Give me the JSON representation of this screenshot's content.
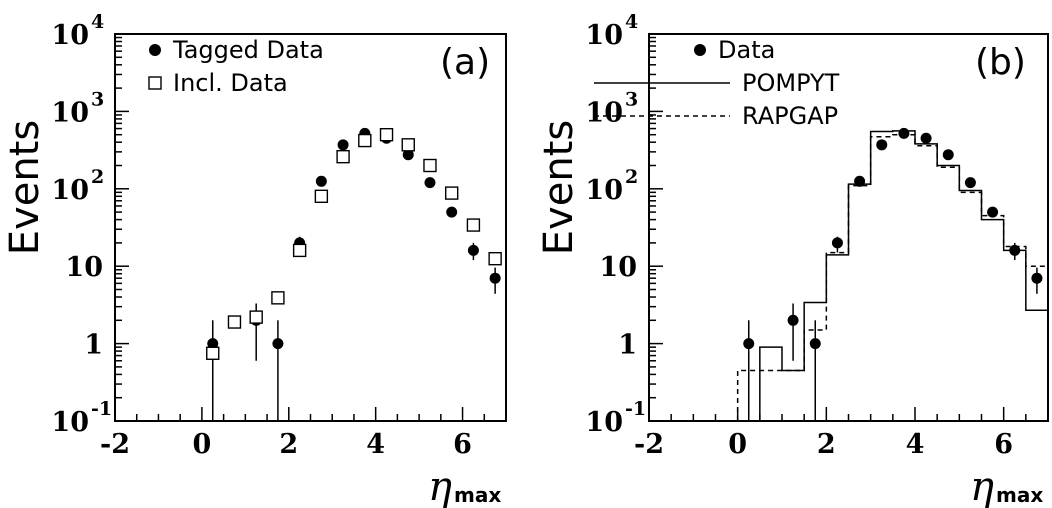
{
  "chart_data": [
    {
      "type": "scatter",
      "panel_label": "(a)",
      "ylabel": "Events",
      "xlabel": "η",
      "xlabel_sub": "max",
      "xlim": [
        -2,
        7
      ],
      "ylim": [
        0.1,
        10000
      ],
      "y_scale": "log",
      "x_ticks": [
        {
          "value": -2,
          "label": "-2"
        },
        {
          "value": 0,
          "label": "0"
        },
        {
          "value": 2,
          "label": "2"
        },
        {
          "value": 4,
          "label": "4"
        },
        {
          "value": 6,
          "label": "6"
        }
      ],
      "y_ticks": [
        {
          "value": 0.1,
          "base": "10",
          "exp": "-1"
        },
        {
          "value": 1,
          "base": "1",
          "exp": ""
        },
        {
          "value": 10,
          "base": "10",
          "exp": ""
        },
        {
          "value": 100,
          "base": "10",
          "exp": "2"
        },
        {
          "value": 1000,
          "base": "10",
          "exp": "3"
        },
        {
          "value": 10000,
          "base": "10",
          "exp": "4"
        }
      ],
      "legend_position": "top-left",
      "series": [
        {
          "name": "Tagged Data",
          "marker": "filled-circle",
          "points": [
            {
              "x": 0.25,
              "y": 1,
              "ylo": 0.1,
              "yhi": 2
            },
            {
              "x": 1.25,
              "y": 2,
              "ylo": 0.6,
              "yhi": 3.3
            },
            {
              "x": 1.75,
              "y": 1,
              "ylo": 0.1,
              "yhi": 2
            },
            {
              "x": 2.25,
              "y": 20,
              "ylo": 15,
              "yhi": 24
            },
            {
              "x": 2.75,
              "y": 125,
              "ylo": 115,
              "yhi": 137
            },
            {
              "x": 3.25,
              "y": 370,
              "ylo": 350,
              "yhi": 390
            },
            {
              "x": 3.75,
              "y": 520,
              "ylo": 495,
              "yhi": 545
            },
            {
              "x": 4.25,
              "y": 450,
              "ylo": 430,
              "yhi": 470
            },
            {
              "x": 4.75,
              "y": 275,
              "ylo": 258,
              "yhi": 292
            },
            {
              "x": 5.25,
              "y": 120,
              "ylo": 110,
              "yhi": 131
            },
            {
              "x": 5.75,
              "y": 50,
              "ylo": 43,
              "yhi": 57
            },
            {
              "x": 6.25,
              "y": 16,
              "ylo": 12,
              "yhi": 20
            },
            {
              "x": 6.75,
              "y": 7,
              "ylo": 4.4,
              "yhi": 9.6
            }
          ]
        },
        {
          "name": "Incl. Data",
          "marker": "open-square",
          "points": [
            {
              "x": 0.25,
              "y": 0.75
            },
            {
              "x": 0.75,
              "y": 1.9
            },
            {
              "x": 1.25,
              "y": 2.2
            },
            {
              "x": 1.75,
              "y": 3.9
            },
            {
              "x": 2.25,
              "y": 16
            },
            {
              "x": 2.75,
              "y": 80
            },
            {
              "x": 3.25,
              "y": 260
            },
            {
              "x": 3.75,
              "y": 420
            },
            {
              "x": 4.25,
              "y": 500
            },
            {
              "x": 4.75,
              "y": 370
            },
            {
              "x": 5.25,
              "y": 200
            },
            {
              "x": 5.75,
              "y": 88
            },
            {
              "x": 6.25,
              "y": 34
            },
            {
              "x": 6.75,
              "y": 12.5
            }
          ]
        }
      ]
    },
    {
      "type": "scatter",
      "panel_label": "(b)",
      "ylabel": "Events",
      "xlabel": "η",
      "xlabel_sub": "max",
      "xlim": [
        -2,
        7
      ],
      "ylim": [
        0.1,
        10000
      ],
      "y_scale": "log",
      "x_ticks": [
        {
          "value": -2,
          "label": "-2"
        },
        {
          "value": 0,
          "label": "0"
        },
        {
          "value": 2,
          "label": "2"
        },
        {
          "value": 4,
          "label": "4"
        },
        {
          "value": 6,
          "label": "6"
        }
      ],
      "y_ticks": [
        {
          "value": 0.1,
          "base": "10",
          "exp": "-1"
        },
        {
          "value": 1,
          "base": "1",
          "exp": ""
        },
        {
          "value": 10,
          "base": "10",
          "exp": ""
        },
        {
          "value": 100,
          "base": "10",
          "exp": "2"
        },
        {
          "value": 1000,
          "base": "10",
          "exp": "3"
        },
        {
          "value": 10000,
          "base": "10",
          "exp": "4"
        }
      ],
      "legend_position": "top-left",
      "series": [
        {
          "name": "Data",
          "marker": "filled-circle",
          "points": [
            {
              "x": 0.25,
              "y": 1,
              "ylo": 0.1,
              "yhi": 2
            },
            {
              "x": 1.25,
              "y": 2,
              "ylo": 0.6,
              "yhi": 3.3
            },
            {
              "x": 1.75,
              "y": 1,
              "ylo": 0.1,
              "yhi": 2
            },
            {
              "x": 2.25,
              "y": 20,
              "ylo": 15,
              "yhi": 24
            },
            {
              "x": 2.75,
              "y": 125,
              "ylo": 115,
              "yhi": 137
            },
            {
              "x": 3.25,
              "y": 370,
              "ylo": 350,
              "yhi": 390
            },
            {
              "x": 3.75,
              "y": 520,
              "ylo": 495,
              "yhi": 545
            },
            {
              "x": 4.25,
              "y": 450,
              "ylo": 430,
              "yhi": 470
            },
            {
              "x": 4.75,
              "y": 275,
              "ylo": 258,
              "yhi": 292
            },
            {
              "x": 5.25,
              "y": 120,
              "ylo": 110,
              "yhi": 131
            },
            {
              "x": 5.75,
              "y": 50,
              "ylo": 43,
              "yhi": 57
            },
            {
              "x": 6.25,
              "y": 16,
              "ylo": 12,
              "yhi": 20
            },
            {
              "x": 6.75,
              "y": 7,
              "ylo": 4.4,
              "yhi": 9.6
            }
          ]
        },
        {
          "name": "POMPYT",
          "line_style": "solid",
          "bin_edges": [
            0,
            0.5,
            1,
            1.5,
            2,
            2.5,
            3,
            3.5,
            4,
            4.5,
            5,
            5.5,
            6,
            6.5,
            7
          ],
          "values": [
            0.1,
            0.9,
            0.45,
            3.4,
            14,
            115,
            550,
            560,
            380,
            200,
            95,
            40,
            16,
            2.7
          ]
        },
        {
          "name": "RAPGAP",
          "line_style": "dashed",
          "bin_edges": [
            0,
            0.5,
            1,
            1.5,
            2,
            2.5,
            3,
            3.5,
            4,
            4.5,
            5,
            5.5,
            6,
            6.5,
            7
          ],
          "values": [
            0.45,
            0.45,
            0.45,
            1.5,
            15,
            110,
            470,
            500,
            360,
            190,
            90,
            45,
            18,
            10
          ]
        }
      ]
    }
  ]
}
